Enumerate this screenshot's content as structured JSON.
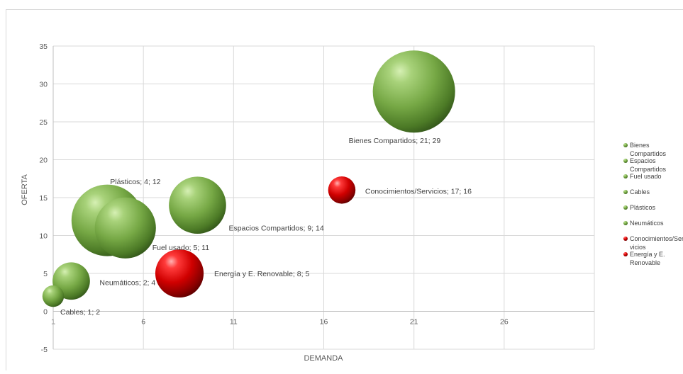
{
  "chart_data": {
    "type": "bubble",
    "title": "",
    "xlabel": "DEMANDA",
    "ylabel": "OFERTA",
    "xlim": [
      1,
      31
    ],
    "ylim": [
      -5,
      35
    ],
    "x_ticks": [
      1,
      6,
      11,
      16,
      21,
      26
    ],
    "y_ticks": [
      -5,
      0,
      5,
      10,
      15,
      20,
      25,
      30,
      35
    ],
    "grid": true,
    "legend_position": "right",
    "colors": {
      "green": "#76a845",
      "red": "#c00000"
    },
    "series": [
      {
        "name": "Bienes Compartidos",
        "x": 21,
        "y": 29,
        "size": 29,
        "color": "green",
        "label": "Bienes Compartidos; 21; 29"
      },
      {
        "name": "Espacios Compartidos",
        "x": 9,
        "y": 14,
        "size": 14,
        "color": "green",
        "label": "Espacios Compartidos; 9; 14"
      },
      {
        "name": "Fuel usado",
        "x": 5,
        "y": 11,
        "size": 16,
        "color": "green",
        "label": "Fuel usado; 5; 11"
      },
      {
        "name": "Cables",
        "x": 1,
        "y": 2,
        "size": 2,
        "color": "green",
        "label": "Cables; 1; 2"
      },
      {
        "name": "Plásticos",
        "x": 4,
        "y": 12,
        "size": 22,
        "color": "green",
        "label": "Plásticos; 4; 12"
      },
      {
        "name": "Neumáticos",
        "x": 2,
        "y": 4,
        "size": 6,
        "color": "green",
        "label": "Neumáticos; 2; 4"
      },
      {
        "name": "Conocimientos/Servicios",
        "x": 17,
        "y": 16,
        "size": 3.2,
        "color": "red",
        "label": "Conocimientos/Servicios; 17; 16"
      },
      {
        "name": "Energía y E. Renovable",
        "x": 8,
        "y": 5,
        "size": 10,
        "color": "red",
        "label": "Energía y E. Renovable; 8; 5"
      }
    ],
    "legend": [
      {
        "lines": [
          "Bienes",
          "Compartidos"
        ],
        "color": "green"
      },
      {
        "lines": [
          "Espacios",
          "Compartidos"
        ],
        "color": "green"
      },
      {
        "lines": [
          "Fuel usado"
        ],
        "color": "green"
      },
      {
        "lines": [
          "Cables"
        ],
        "color": "green"
      },
      {
        "lines": [
          "Plásticos"
        ],
        "color": "green"
      },
      {
        "lines": [
          "Neumáticos"
        ],
        "color": "green"
      },
      {
        "lines": [
          "Conocimientos/Ser",
          "vicios"
        ],
        "color": "red"
      },
      {
        "lines": [
          "Energía y E.",
          "Renovable"
        ],
        "color": "red"
      }
    ]
  }
}
